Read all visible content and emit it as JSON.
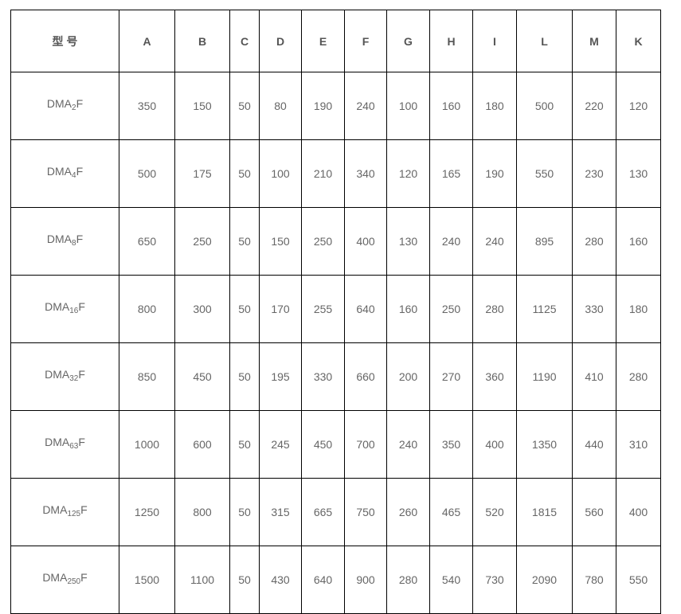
{
  "table": {
    "headers": [
      "型 号",
      "A",
      "B",
      "C",
      "D",
      "E",
      "F",
      "G",
      "H",
      "I",
      "L",
      "M",
      "K"
    ],
    "rows": [
      {
        "model": {
          "prefix": "DMA",
          "sub": "2",
          "suffix": "F"
        },
        "values": [
          "350",
          "150",
          "50",
          "80",
          "190",
          "240",
          "100",
          "160",
          "180",
          "500",
          "220",
          "120"
        ]
      },
      {
        "model": {
          "prefix": "DMA",
          "sub": "4",
          "suffix": "F"
        },
        "values": [
          "500",
          "175",
          "50",
          "100",
          "210",
          "340",
          "120",
          "165",
          "190",
          "550",
          "230",
          "130"
        ]
      },
      {
        "model": {
          "prefix": "DMA",
          "sub": "8",
          "suffix": "F"
        },
        "values": [
          "650",
          "250",
          "50",
          "150",
          "250",
          "400",
          "130",
          "240",
          "240",
          "895",
          "280",
          "160"
        ]
      },
      {
        "model": {
          "prefix": "DMA",
          "sub": "16",
          "suffix": "F"
        },
        "values": [
          "800",
          "300",
          "50",
          "170",
          "255",
          "640",
          "160",
          "250",
          "280",
          "1125",
          "330",
          "180"
        ]
      },
      {
        "model": {
          "prefix": "DMA",
          "sub": "32",
          "suffix": "F"
        },
        "values": [
          "850",
          "450",
          "50",
          "195",
          "330",
          "660",
          "200",
          "270",
          "360",
          "1190",
          "410",
          "280"
        ]
      },
      {
        "model": {
          "prefix": "DMA",
          "sub": "63",
          "suffix": "F"
        },
        "values": [
          "1000",
          "600",
          "50",
          "245",
          "450",
          "700",
          "240",
          "350",
          "400",
          "1350",
          "440",
          "310"
        ]
      },
      {
        "model": {
          "prefix": "DMA",
          "sub": "125",
          "suffix": "F"
        },
        "values": [
          "1250",
          "800",
          "50",
          "315",
          "665",
          "750",
          "260",
          "465",
          "520",
          "1815",
          "560",
          "400"
        ]
      },
      {
        "model": {
          "prefix": "DMA",
          "sub": "250",
          "suffix": "F"
        },
        "values": [
          "1500",
          "1100",
          "50",
          "430",
          "640",
          "900",
          "280",
          "540",
          "730",
          "2090",
          "780",
          "550"
        ]
      }
    ]
  }
}
